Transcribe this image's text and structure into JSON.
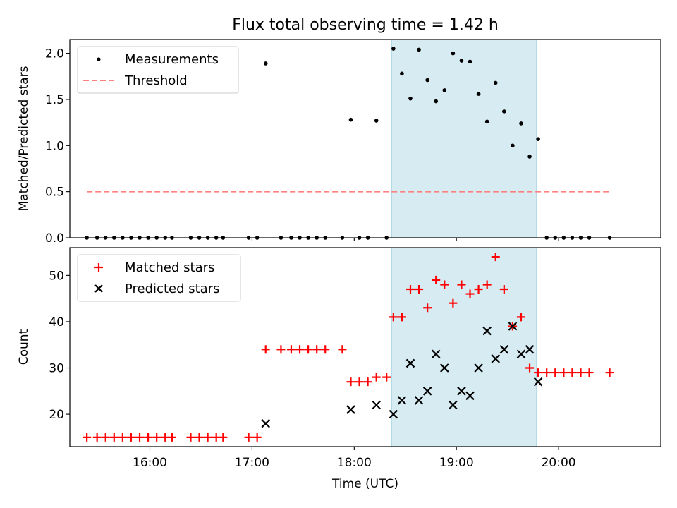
{
  "chart_data": {
    "title": "Flux total observing time = 1.42 h",
    "xlabel": "Time (UTC)",
    "xlim": [
      "15:13",
      "21:00"
    ],
    "x_ticks": [
      "16:00",
      "17:00",
      "18:00",
      "19:00",
      "20:00"
    ],
    "shaded_interval": {
      "start": "18:22",
      "end": "19:47",
      "color": "#add8e6"
    },
    "panels": [
      {
        "type": "scatter",
        "ylabel": "Matched/Predicted stars",
        "ylim": [
          0,
          2.15
        ],
        "y_ticks": [
          "0.0",
          "0.5",
          "1.0",
          "1.5",
          "2.0"
        ],
        "legend_position": "top-left",
        "series": [
          {
            "name": "Measurements",
            "marker": "dot",
            "color": "#000000",
            "points": [
              [
                "15:23",
                0
              ],
              [
                "15:29",
                0
              ],
              [
                "15:34",
                0
              ],
              [
                "15:39",
                0
              ],
              [
                "15:44",
                0
              ],
              [
                "15:49",
                0
              ],
              [
                "15:54",
                0
              ],
              [
                "15:59",
                0
              ],
              [
                "16:04",
                0
              ],
              [
                "16:09",
                0
              ],
              [
                "16:13",
                0
              ],
              [
                "16:24",
                0
              ],
              [
                "16:29",
                0
              ],
              [
                "16:34",
                0
              ],
              [
                "16:39",
                0
              ],
              [
                "16:43",
                0
              ],
              [
                "16:58",
                0
              ],
              [
                "17:03",
                0
              ],
              [
                "17:08",
                1.89
              ],
              [
                "17:17",
                0
              ],
              [
                "17:23",
                0
              ],
              [
                "17:28",
                0
              ],
              [
                "17:33",
                0
              ],
              [
                "17:38",
                0
              ],
              [
                "17:43",
                0
              ],
              [
                "17:53",
                0
              ],
              [
                "17:58",
                1.28
              ],
              [
                "18:03",
                0
              ],
              [
                "18:08",
                0
              ],
              [
                "18:13",
                1.27
              ],
              [
                "18:19",
                0
              ],
              [
                "18:23",
                2.05
              ],
              [
                "18:28",
                1.78
              ],
              [
                "18:33",
                1.51
              ],
              [
                "18:38",
                2.04
              ],
              [
                "18:43",
                1.71
              ],
              [
                "18:48",
                1.48
              ],
              [
                "18:53",
                1.6
              ],
              [
                "18:58",
                2.0
              ],
              [
                "19:03",
                1.92
              ],
              [
                "19:08",
                1.91
              ],
              [
                "19:13",
                1.56
              ],
              [
                "19:18",
                1.26
              ],
              [
                "19:23",
                1.68
              ],
              [
                "19:28",
                1.37
              ],
              [
                "19:33",
                1.0
              ],
              [
                "19:38",
                1.24
              ],
              [
                "19:43",
                0.88
              ],
              [
                "19:48",
                1.07
              ],
              [
                "19:53",
                0
              ],
              [
                "19:58",
                0
              ],
              [
                "20:03",
                0
              ],
              [
                "20:08",
                0
              ],
              [
                "20:13",
                0
              ],
              [
                "20:18",
                0
              ],
              [
                "20:30",
                0
              ]
            ]
          },
          {
            "name": "Threshold",
            "marker": "dashed-line",
            "color": "#ff8080",
            "points": [
              [
                "15:23",
                0.5
              ],
              [
                "20:30",
                0.5
              ]
            ]
          }
        ]
      },
      {
        "type": "scatter",
        "ylabel": "Count",
        "ylim": [
          13,
          56
        ],
        "y_ticks": [
          "20",
          "30",
          "40",
          "50"
        ],
        "legend_position": "top-left",
        "series": [
          {
            "name": "Matched stars",
            "marker": "plus",
            "color": "#ff0000",
            "points": [
              [
                "15:23",
                15
              ],
              [
                "15:29",
                15
              ],
              [
                "15:34",
                15
              ],
              [
                "15:39",
                15
              ],
              [
                "15:44",
                15
              ],
              [
                "15:49",
                15
              ],
              [
                "15:54",
                15
              ],
              [
                "15:59",
                15
              ],
              [
                "16:04",
                15
              ],
              [
                "16:09",
                15
              ],
              [
                "16:13",
                15
              ],
              [
                "16:24",
                15
              ],
              [
                "16:29",
                15
              ],
              [
                "16:34",
                15
              ],
              [
                "16:39",
                15
              ],
              [
                "16:43",
                15
              ],
              [
                "16:58",
                15
              ],
              [
                "17:03",
                15
              ],
              [
                "17:08",
                34
              ],
              [
                "17:17",
                34
              ],
              [
                "17:23",
                34
              ],
              [
                "17:28",
                34
              ],
              [
                "17:33",
                34
              ],
              [
                "17:38",
                34
              ],
              [
                "17:43",
                34
              ],
              [
                "17:53",
                34
              ],
              [
                "17:58",
                27
              ],
              [
                "18:03",
                27
              ],
              [
                "18:08",
                27
              ],
              [
                "18:13",
                28
              ],
              [
                "18:19",
                28
              ],
              [
                "18:23",
                41
              ],
              [
                "18:28",
                41
              ],
              [
                "18:33",
                47
              ],
              [
                "18:38",
                47
              ],
              [
                "18:43",
                43
              ],
              [
                "18:48",
                49
              ],
              [
                "18:53",
                48
              ],
              [
                "18:58",
                44
              ],
              [
                "19:03",
                48
              ],
              [
                "19:08",
                46
              ],
              [
                "19:13",
                47
              ],
              [
                "19:18",
                48
              ],
              [
                "19:23",
                54
              ],
              [
                "19:28",
                47
              ],
              [
                "19:33",
                39
              ],
              [
                "19:38",
                41
              ],
              [
                "19:43",
                30
              ],
              [
                "19:48",
                29
              ],
              [
                "19:53",
                29
              ],
              [
                "19:58",
                29
              ],
              [
                "20:03",
                29
              ],
              [
                "20:08",
                29
              ],
              [
                "20:13",
                29
              ],
              [
                "20:18",
                29
              ],
              [
                "20:30",
                29
              ]
            ]
          },
          {
            "name": "Predicted stars",
            "marker": "x",
            "color": "#000000",
            "points": [
              [
                "17:08",
                18
              ],
              [
                "17:58",
                21
              ],
              [
                "18:13",
                22
              ],
              [
                "18:23",
                20
              ],
              [
                "18:28",
                23
              ],
              [
                "18:33",
                31
              ],
              [
                "18:38",
                23
              ],
              [
                "18:43",
                25
              ],
              [
                "18:48",
                33
              ],
              [
                "18:53",
                30
              ],
              [
                "18:58",
                22
              ],
              [
                "19:03",
                25
              ],
              [
                "19:08",
                24
              ],
              [
                "19:13",
                30
              ],
              [
                "19:18",
                38
              ],
              [
                "19:23",
                32
              ],
              [
                "19:28",
                34
              ],
              [
                "19:33",
                39
              ],
              [
                "19:38",
                33
              ],
              [
                "19:43",
                34
              ],
              [
                "19:48",
                27
              ]
            ]
          }
        ]
      }
    ]
  }
}
